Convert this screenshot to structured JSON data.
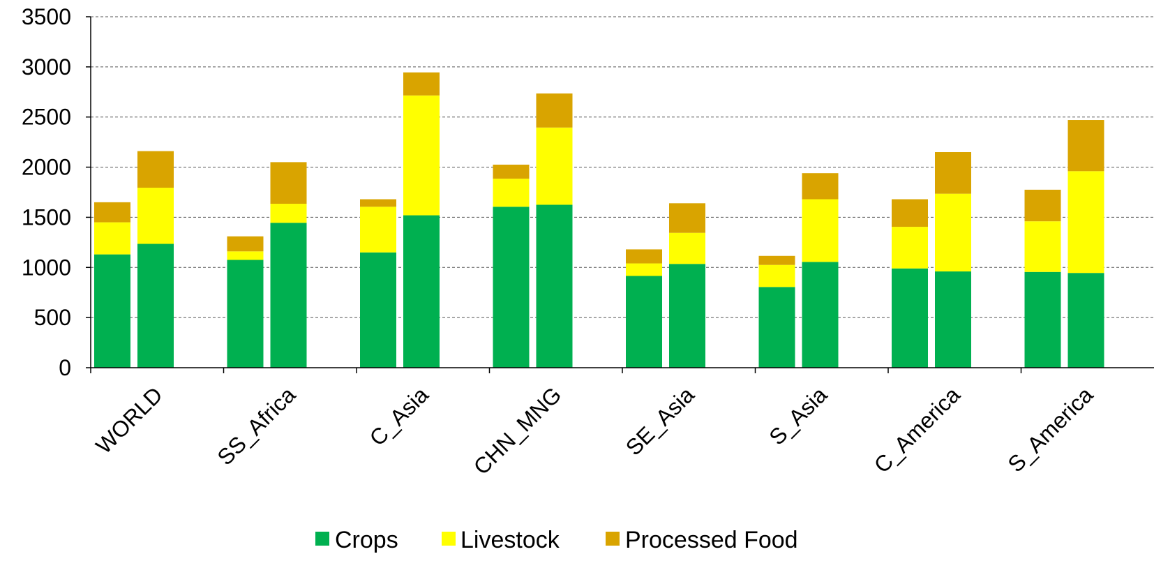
{
  "chart_data": {
    "type": "bar",
    "stacked": true,
    "categories": [
      "WORLD",
      "SS_Africa",
      "C_Asia",
      "CHN_MNG",
      "SE_Asia",
      "S_Asia",
      "C_America",
      "S_America"
    ],
    "bars_per_category": 2,
    "series": [
      {
        "name": "Crops",
        "color": "#00b050",
        "values": [
          [
            1130,
            1235
          ],
          [
            1075,
            1445
          ],
          [
            1150,
            1520
          ],
          [
            1605,
            1625
          ],
          [
            915,
            1035
          ],
          [
            805,
            1055
          ],
          [
            990,
            960
          ],
          [
            955,
            945
          ]
        ]
      },
      {
        "name": "Livestock",
        "color": "#ffff00",
        "values": [
          [
            320,
            560
          ],
          [
            85,
            190
          ],
          [
            455,
            1195
          ],
          [
            280,
            770
          ],
          [
            125,
            310
          ],
          [
            220,
            625
          ],
          [
            415,
            775
          ],
          [
            505,
            1015
          ]
        ]
      },
      {
        "name": "Processed Food",
        "color": "#d9a400",
        "values": [
          [
            200,
            365
          ],
          [
            150,
            415
          ],
          [
            75,
            230
          ],
          [
            140,
            340
          ],
          [
            140,
            295
          ],
          [
            90,
            260
          ],
          [
            275,
            415
          ],
          [
            315,
            510
          ]
        ]
      }
    ],
    "ylim": [
      0,
      3500
    ],
    "yticks": [
      "0",
      "500",
      "1000",
      "1500",
      "2000",
      "2500",
      "3000",
      "3500"
    ],
    "grid": true,
    "legend_position": "bottom",
    "title": "",
    "xlabel": "",
    "ylabel": ""
  }
}
